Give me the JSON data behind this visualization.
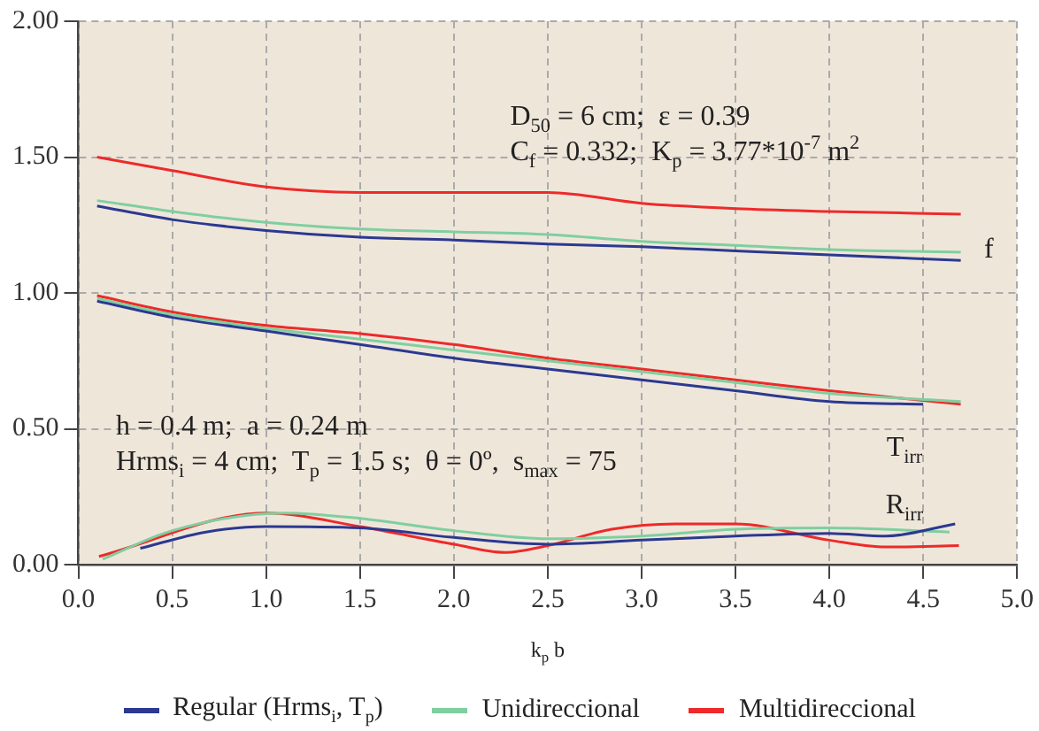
{
  "chart_data": {
    "type": "line",
    "xlabel": "k$_{p}$ b",
    "xlim": [
      0,
      5
    ],
    "xticks": [
      {
        "value": 0,
        "label": "0.0"
      },
      {
        "value": 0.5,
        "label": "0.5"
      },
      {
        "value": 1,
        "label": "1.0"
      },
      {
        "value": 1.5,
        "label": "1.5"
      },
      {
        "value": 2,
        "label": "2.0"
      },
      {
        "value": 2.5,
        "label": "2.5"
      },
      {
        "value": 3,
        "label": "3.0"
      },
      {
        "value": 3.5,
        "label": "3.5"
      },
      {
        "value": 4,
        "label": "4.0"
      },
      {
        "value": 4.5,
        "label": "4.5"
      },
      {
        "value": 5,
        "label": "5.0"
      }
    ],
    "ylim": [
      0,
      2
    ],
    "yticks": [
      {
        "value": 0,
        "label": "0.00"
      },
      {
        "value": 0.5,
        "label": "0.50"
      },
      {
        "value": 1,
        "label": "1.00"
      },
      {
        "value": 1.5,
        "label": "1.50"
      },
      {
        "value": 2,
        "label": "2.00"
      }
    ],
    "grid": true,
    "legend": "bottom",
    "marker": "none",
    "line_style": "solid",
    "series": [
      {
        "name": "Regular (Hrms$_{i}$, T$_{p}$)",
        "color": "#2b3990",
        "x": [
          0.1,
          0.5,
          1,
          1.5,
          2,
          2.5,
          3,
          3.5,
          4,
          4.7
        ],
        "values": [
          1.32,
          1.27,
          1.23,
          1.205,
          1.195,
          1.18,
          1.17,
          1.155,
          1.14,
          1.12
        ]
      },
      {
        "name": "Unidireccional",
        "color": "#7fcf9f",
        "x": [
          0.1,
          0.5,
          1,
          1.5,
          2,
          2.5,
          3,
          3.5,
          4,
          4.7
        ],
        "values": [
          1.34,
          1.3,
          1.26,
          1.235,
          1.225,
          1.215,
          1.19,
          1.175,
          1.16,
          1.15
        ]
      },
      {
        "name": "Multidireccional",
        "color": "#ee2a2a",
        "x": [
          0.1,
          0.5,
          1,
          1.5,
          2,
          2.5,
          3,
          3.5,
          4,
          4.7
        ],
        "values": [
          1.5,
          1.45,
          1.39,
          1.37,
          1.37,
          1.37,
          1.33,
          1.31,
          1.3,
          1.29
        ]
      },
      {
        "color": "#2b3990",
        "x": [
          0.1,
          0.5,
          1,
          1.5,
          2,
          2.5,
          3,
          3.5,
          4,
          4.5
        ],
        "values": [
          0.97,
          0.91,
          0.86,
          0.81,
          0.76,
          0.72,
          0.68,
          0.64,
          0.6,
          0.59
        ]
      },
      {
        "color": "#7fcf9f",
        "x": [
          0.1,
          0.5,
          1,
          1.5,
          2,
          2.5,
          3,
          3.5,
          4,
          4.7
        ],
        "values": [
          0.98,
          0.92,
          0.87,
          0.83,
          0.79,
          0.75,
          0.71,
          0.67,
          0.63,
          0.6
        ]
      },
      {
        "color": "#ee2a2a",
        "x": [
          0.1,
          0.5,
          1,
          1.5,
          2,
          2.5,
          3,
          3.5,
          4,
          4.7
        ],
        "values": [
          0.99,
          0.93,
          0.88,
          0.85,
          0.81,
          0.76,
          0.72,
          0.68,
          0.64,
          0.59
        ]
      },
      {
        "color": "#2b3990",
        "x": [
          0.33,
          0.68,
          1,
          1.5,
          2,
          2.5,
          3,
          3.5,
          4,
          4.3,
          4.67
        ],
        "values": [
          0.06,
          0.12,
          0.14,
          0.135,
          0.1,
          0.075,
          0.09,
          0.105,
          0.115,
          0.105,
          0.15
        ]
      },
      {
        "color": "#7fcf9f",
        "x": [
          0.13,
          0.5,
          1.1,
          1.5,
          2,
          2.5,
          3,
          3.5,
          4,
          4.64
        ],
        "values": [
          0.02,
          0.125,
          0.19,
          0.17,
          0.125,
          0.095,
          0.105,
          0.13,
          0.135,
          0.12
        ]
      },
      {
        "color": "#ee2a2a",
        "x": [
          0.11,
          1,
          1.5,
          2,
          2.27,
          2.5,
          2.84,
          3.18,
          3.5,
          4,
          4.3,
          4.69
        ],
        "values": [
          0.03,
          0.19,
          0.14,
          0.075,
          0.045,
          0.07,
          0.13,
          0.15,
          0.15,
          0.09,
          0.065,
          0.07
        ]
      }
    ],
    "annotations": [
      "D$_{50}$ = 6 cm;  ε = 0.39",
      "C$_{f}$ = 0.332;  K$_{p}$ = 3.77*10$^{-7}$ m$^{2}$",
      "h = 0.4 m;  a = 0.24 m",
      "Hrms$_{i}$ = 4 cm;  T$_{p}$ = 1.5 s;  θ = 0º,  s$_{max}$ = 75",
      "f",
      "T$_{irr}$",
      "R$_{irr}$"
    ]
  }
}
